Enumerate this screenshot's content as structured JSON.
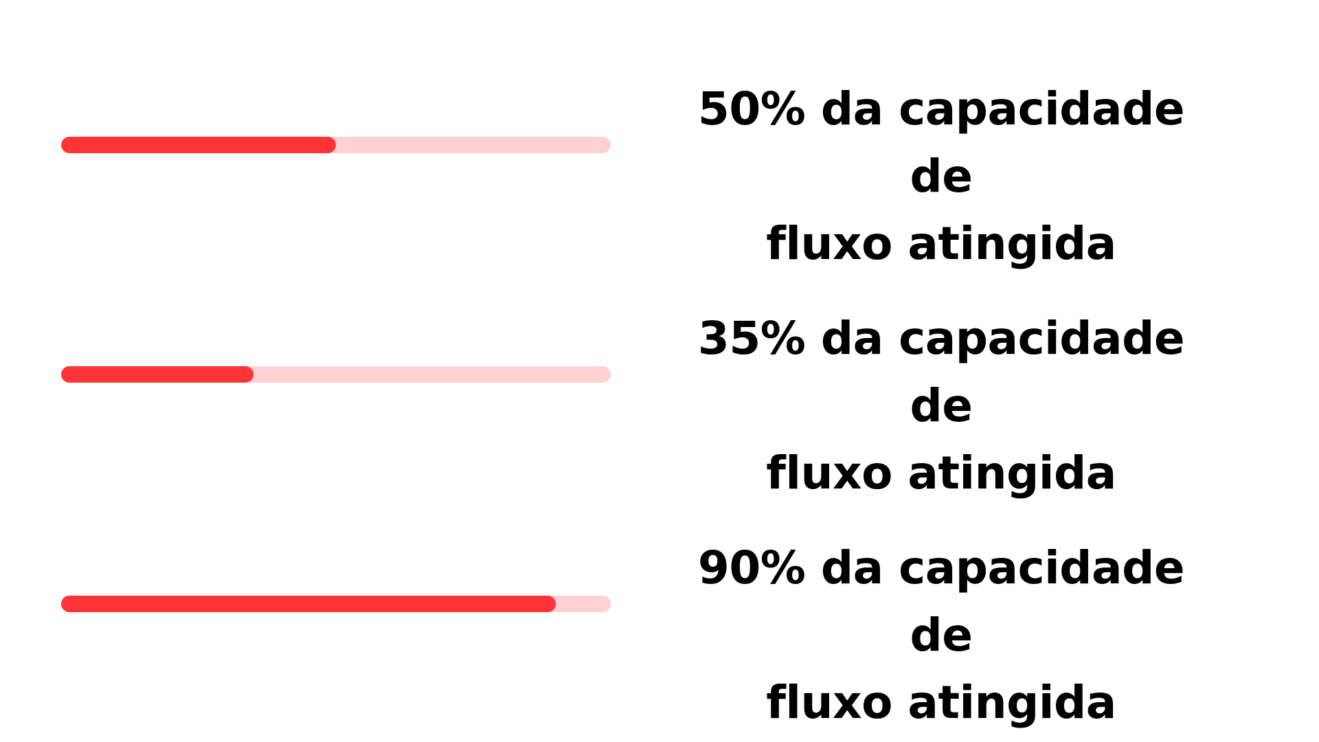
{
  "colors": {
    "background": "#ffffff",
    "track": "#ffd1d2",
    "fill": "#ff3437",
    "text": "#000000"
  },
  "items": [
    {
      "progress": 0.5,
      "line1": "50% da capacidade de",
      "line2": "fluxo atingida"
    },
    {
      "progress": 0.35,
      "line1": "35% da capacidade de",
      "line2": "fluxo atingida"
    },
    {
      "progress": 0.9,
      "line1": "90% da capacidade de",
      "line2": "fluxo atingida"
    }
  ]
}
